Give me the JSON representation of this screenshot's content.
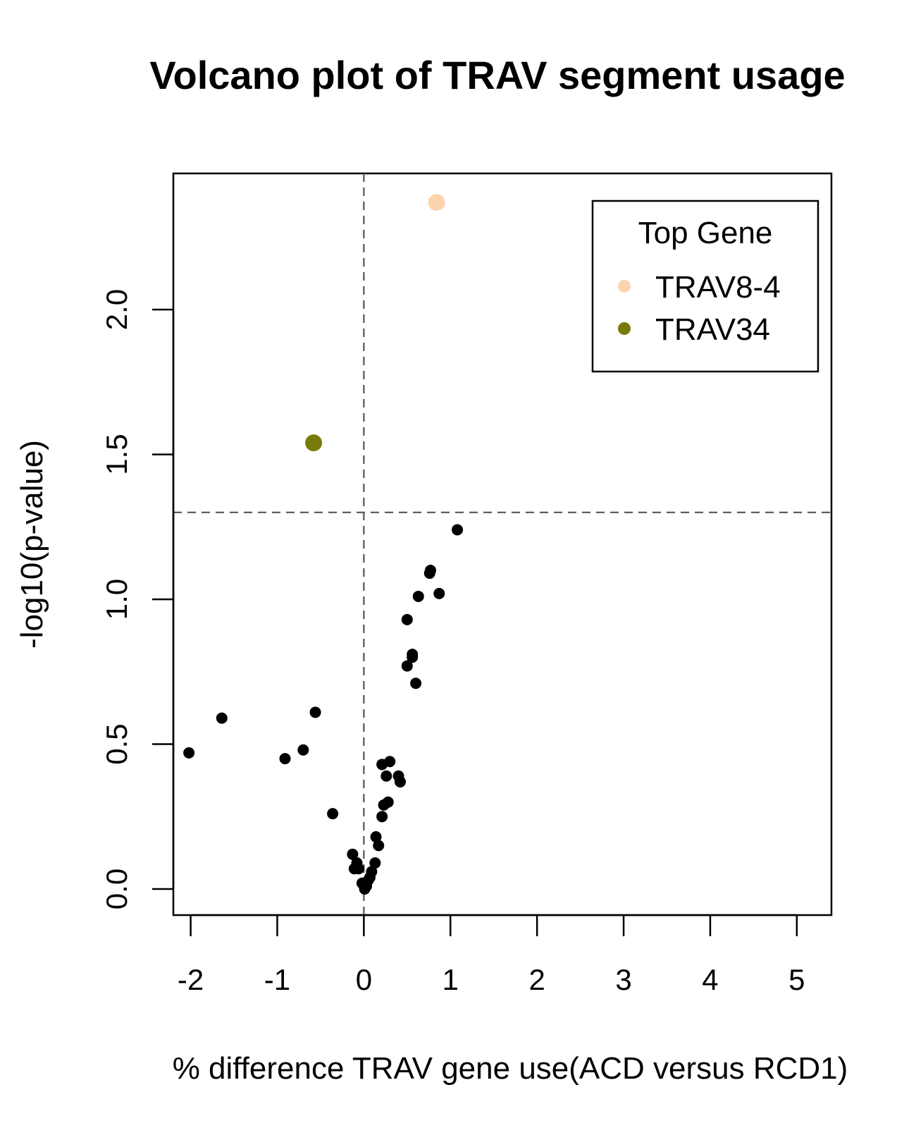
{
  "chart_data": {
    "type": "scatter",
    "title": "Volcano plot of TRAV segment usage",
    "xlabel": "% difference TRAV gene use(ACD versus RCD1)",
    "ylabel": "-log10(p-value)",
    "xlim": [
      -2.2,
      5.4
    ],
    "ylim": [
      -0.09,
      2.47
    ],
    "x_ticks": [
      -2,
      -1,
      0,
      1,
      2,
      3,
      4,
      5
    ],
    "x_tick_labels": [
      "-2",
      "-1",
      "0",
      "1",
      "2",
      "3",
      "4",
      "5"
    ],
    "y_ticks": [
      0.0,
      0.5,
      1.0,
      1.5,
      2.0
    ],
    "y_tick_labels": [
      "0.0",
      "0.5",
      "1.0",
      "1.5",
      "2.0"
    ],
    "reference_lines": {
      "vertical_x": 0,
      "horizontal_y": 1.3
    },
    "grid": false,
    "legend": {
      "title": "Top Gene",
      "position": "top-right",
      "entries": [
        {
          "label": "TRAV8-4",
          "color": "#FDD3AE"
        },
        {
          "label": "TRAV34",
          "color": "#7A7A0A"
        }
      ]
    },
    "colors": {
      "default_point": "#000000",
      "reference_line": "#555555"
    },
    "highlighted_points": [
      {
        "label": "TRAV8-4",
        "x": 0.84,
        "y": 2.37,
        "color": "#FDD3AE"
      },
      {
        "label": "TRAV34",
        "x": -0.58,
        "y": 1.54,
        "color": "#7A7A0A"
      }
    ],
    "points": [
      {
        "x": 1.08,
        "y": 1.24
      },
      {
        "x": 0.77,
        "y": 1.1
      },
      {
        "x": 0.76,
        "y": 1.09
      },
      {
        "x": 0.87,
        "y": 1.02
      },
      {
        "x": 0.63,
        "y": 1.01
      },
      {
        "x": 0.5,
        "y": 0.93
      },
      {
        "x": 0.56,
        "y": 0.81
      },
      {
        "x": 0.56,
        "y": 0.8
      },
      {
        "x": 0.5,
        "y": 0.77
      },
      {
        "x": 0.6,
        "y": 0.71
      },
      {
        "x": -1.64,
        "y": 0.59
      },
      {
        "x": -0.56,
        "y": 0.61
      },
      {
        "x": -2.02,
        "y": 0.47
      },
      {
        "x": -0.7,
        "y": 0.48
      },
      {
        "x": -0.91,
        "y": 0.45
      },
      {
        "x": 0.21,
        "y": 0.43
      },
      {
        "x": 0.3,
        "y": 0.44
      },
      {
        "x": 0.26,
        "y": 0.39
      },
      {
        "x": 0.4,
        "y": 0.39
      },
      {
        "x": 0.42,
        "y": 0.37
      },
      {
        "x": 0.28,
        "y": 0.3
      },
      {
        "x": 0.23,
        "y": 0.29
      },
      {
        "x": -0.36,
        "y": 0.26
      },
      {
        "x": 0.21,
        "y": 0.25
      },
      {
        "x": 0.14,
        "y": 0.18
      },
      {
        "x": 0.17,
        "y": 0.15
      },
      {
        "x": -0.13,
        "y": 0.12
      },
      {
        "x": -0.08,
        "y": 0.09
      },
      {
        "x": 0.13,
        "y": 0.09
      },
      {
        "x": -0.11,
        "y": 0.07
      },
      {
        "x": -0.06,
        "y": 0.07
      },
      {
        "x": 0.09,
        "y": 0.06
      },
      {
        "x": 0.07,
        "y": 0.04
      },
      {
        "x": 0.05,
        "y": 0.03
      },
      {
        "x": -0.02,
        "y": 0.02
      },
      {
        "x": 0.03,
        "y": 0.01
      },
      {
        "x": 0.01,
        "y": 0.0
      }
    ]
  }
}
